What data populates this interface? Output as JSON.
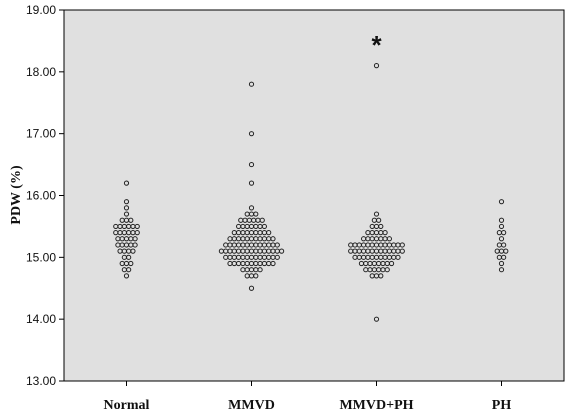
{
  "chart_data": {
    "type": "scatter",
    "ylabel": "PDW (%)",
    "ylim": [
      13.0,
      19.0
    ],
    "yticks": [
      "13.00",
      "14.00",
      "15.00",
      "16.00",
      "17.00",
      "18.00",
      "19.00"
    ],
    "categories": [
      "Normal",
      "MMVD",
      "MMVD+PH",
      "PH"
    ],
    "grid": false,
    "background_color": "#e0e0e0",
    "marker_color": "#222222",
    "annotation": {
      "text": "*",
      "category": "MMVD+PH",
      "y": 18.55
    },
    "groups": [
      {
        "name": "Normal",
        "values": [
          14.7,
          14.8,
          14.8,
          14.9,
          14.9,
          14.9,
          15.0,
          15.0,
          15.1,
          15.1,
          15.1,
          15.1,
          15.2,
          15.2,
          15.2,
          15.2,
          15.2,
          15.3,
          15.3,
          15.3,
          15.3,
          15.3,
          15.4,
          15.4,
          15.4,
          15.4,
          15.4,
          15.4,
          15.5,
          15.5,
          15.5,
          15.5,
          15.5,
          15.5,
          15.6,
          15.6,
          15.6,
          15.7,
          15.8,
          15.9,
          16.2
        ]
      },
      {
        "name": "MMVD",
        "values": [
          14.5,
          14.7,
          14.7,
          14.7,
          14.8,
          14.8,
          14.8,
          14.8,
          14.8,
          14.9,
          14.9,
          14.9,
          14.9,
          14.9,
          14.9,
          14.9,
          14.9,
          14.9,
          14.9,
          14.9,
          15.0,
          15.0,
          15.0,
          15.0,
          15.0,
          15.0,
          15.0,
          15.0,
          15.0,
          15.0,
          15.0,
          15.0,
          15.0,
          15.1,
          15.1,
          15.1,
          15.1,
          15.1,
          15.1,
          15.1,
          15.1,
          15.1,
          15.1,
          15.1,
          15.1,
          15.1,
          15.1,
          15.1,
          15.2,
          15.2,
          15.2,
          15.2,
          15.2,
          15.2,
          15.2,
          15.2,
          15.2,
          15.2,
          15.2,
          15.2,
          15.2,
          15.3,
          15.3,
          15.3,
          15.3,
          15.3,
          15.3,
          15.3,
          15.3,
          15.3,
          15.3,
          15.3,
          15.4,
          15.4,
          15.4,
          15.4,
          15.4,
          15.4,
          15.4,
          15.4,
          15.4,
          15.5,
          15.5,
          15.5,
          15.5,
          15.5,
          15.5,
          15.5,
          15.6,
          15.6,
          15.6,
          15.6,
          15.6,
          15.6,
          15.7,
          15.7,
          15.7,
          15.8,
          16.2,
          16.5,
          17.0,
          17.8
        ]
      },
      {
        "name": "MMVD+PH",
        "values": [
          14.0,
          14.7,
          14.7,
          14.7,
          14.8,
          14.8,
          14.8,
          14.8,
          14.8,
          14.8,
          14.9,
          14.9,
          14.9,
          14.9,
          14.9,
          14.9,
          14.9,
          14.9,
          15.0,
          15.0,
          15.0,
          15.0,
          15.0,
          15.0,
          15.0,
          15.0,
          15.0,
          15.0,
          15.0,
          15.1,
          15.1,
          15.1,
          15.1,
          15.1,
          15.1,
          15.1,
          15.1,
          15.1,
          15.1,
          15.1,
          15.1,
          15.1,
          15.2,
          15.2,
          15.2,
          15.2,
          15.2,
          15.2,
          15.2,
          15.2,
          15.2,
          15.2,
          15.2,
          15.2,
          15.2,
          15.3,
          15.3,
          15.3,
          15.3,
          15.3,
          15.3,
          15.3,
          15.4,
          15.4,
          15.4,
          15.4,
          15.4,
          15.5,
          15.5,
          15.5,
          15.6,
          15.6,
          15.7,
          18.1
        ]
      },
      {
        "name": "PH",
        "values": [
          14.8,
          14.9,
          15.0,
          15.0,
          15.1,
          15.1,
          15.1,
          15.2,
          15.2,
          15.3,
          15.4,
          15.4,
          15.5,
          15.6,
          15.9
        ]
      }
    ]
  }
}
